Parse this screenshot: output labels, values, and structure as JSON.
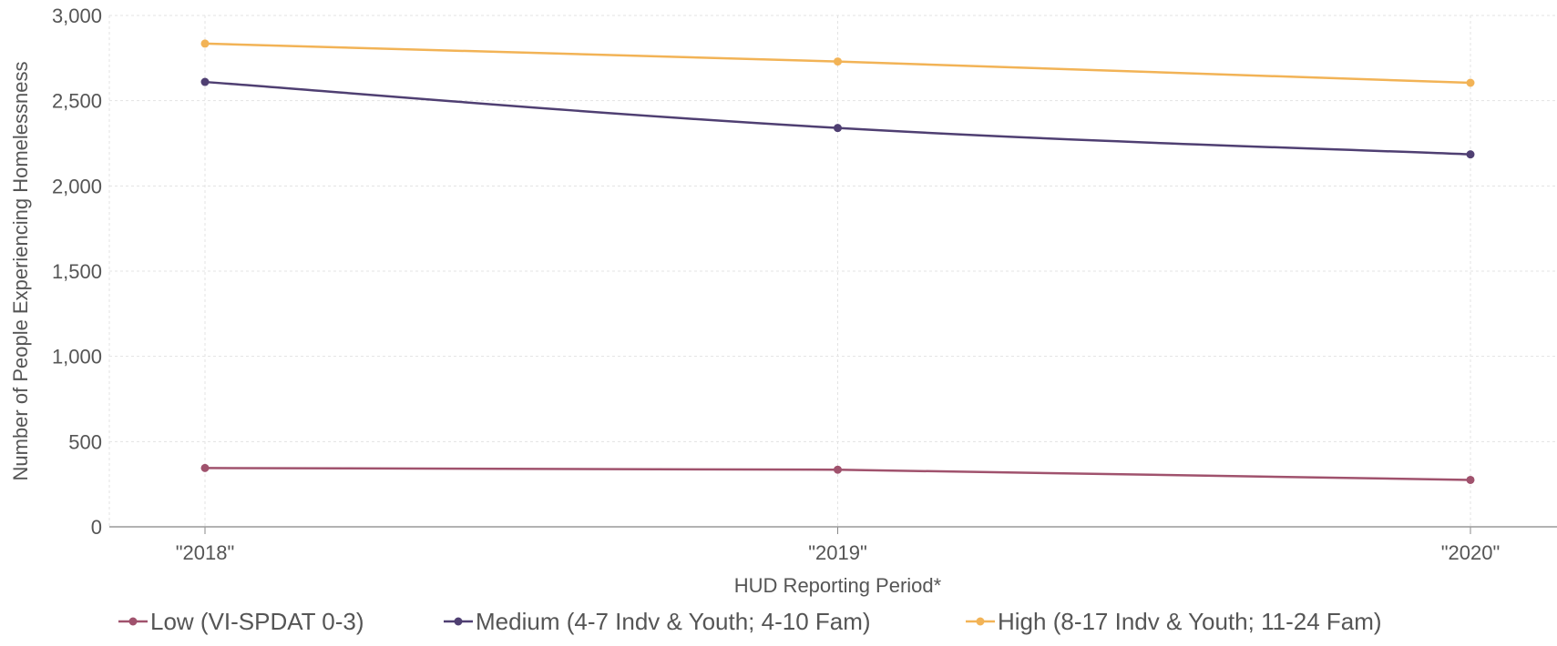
{
  "chart_data": {
    "type": "line",
    "xlabel": "HUD Reporting Period*",
    "ylabel": "Number of People Experiencing Homelessness",
    "categories": [
      "\"2018\"",
      "\"2019\"",
      "\"2020\""
    ],
    "ylim": [
      0,
      3000
    ],
    "yticks": [
      0,
      500,
      1000,
      1500,
      2000,
      2500,
      3000
    ],
    "ytick_labels": [
      "0",
      "500",
      "1,000",
      "1,500",
      "2,000",
      "2,500",
      "3,000"
    ],
    "grid": true,
    "legend_position": "bottom-left",
    "series": [
      {
        "name": "Low (VI-SPDAT 0-3)",
        "color": "#a0526d",
        "values": [
          345,
          335,
          275
        ]
      },
      {
        "name": "Medium (4-7 Indv & Youth; 4-10 Fam)",
        "color": "#4f3f72",
        "values": [
          2610,
          2340,
          2185
        ]
      },
      {
        "name": "High (8-17 Indv & Youth; 11-24 Fam)",
        "color": "#f2b356",
        "values": [
          2835,
          2730,
          2605
        ]
      }
    ]
  }
}
